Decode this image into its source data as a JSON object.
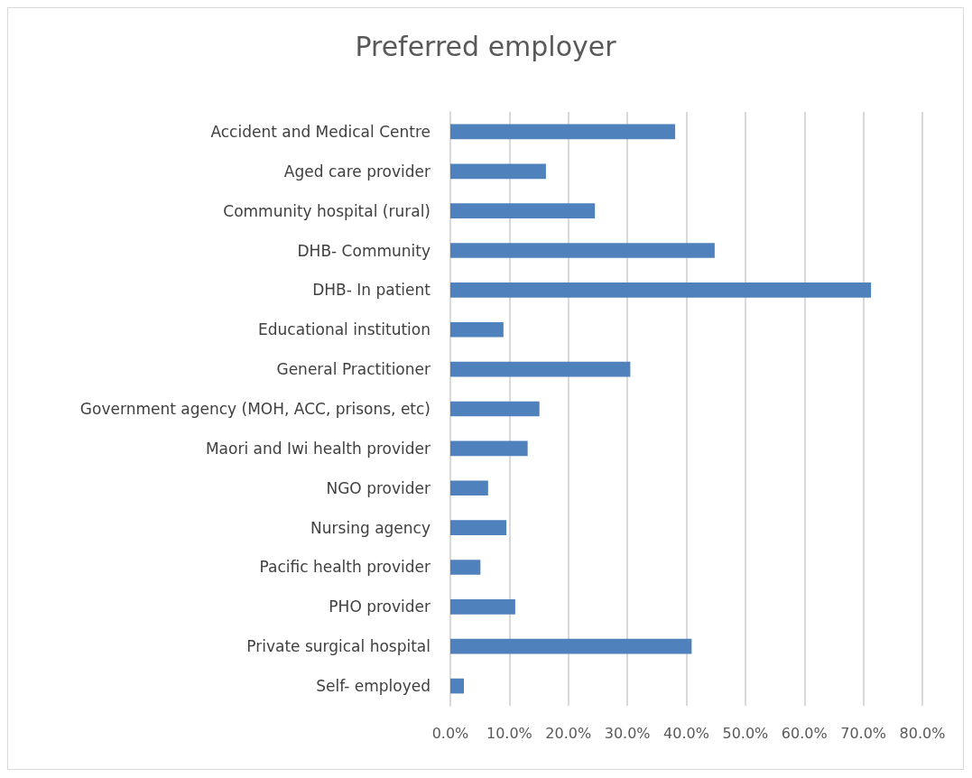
{
  "chart_data": {
    "type": "bar",
    "orientation": "horizontal",
    "title": "Preferred employer",
    "categories": [
      "Accident and Medical Centre",
      "Aged care provider",
      "Community hospital (rural)",
      "DHB- Community",
      "DHB- In patient",
      "Educational institution",
      "General Practitioner",
      "Government agency (MOH, ACC, prisons, etc)",
      "Maori and Iwi health provider",
      "NGO provider",
      "Nursing agency",
      "Pacific health provider",
      "PHO provider",
      "Private surgical hospital",
      "Self- employed"
    ],
    "values": [
      38.1,
      16.2,
      24.5,
      44.8,
      71.3,
      9.0,
      30.5,
      15.1,
      13.1,
      6.4,
      9.5,
      5.1,
      11.0,
      40.9,
      2.3
    ],
    "color": "#4f81bd",
    "xlim": [
      0,
      80
    ],
    "xticks": [
      {
        "value": 0,
        "label": "0.0%"
      },
      {
        "value": 10,
        "label": "10.0%"
      },
      {
        "value": 20,
        "label": "20.0%"
      },
      {
        "value": 30,
        "label": "30.0%"
      },
      {
        "value": 40,
        "label": "40.0%"
      },
      {
        "value": 50,
        "label": "50.0%"
      },
      {
        "value": 60,
        "label": "60.0%"
      },
      {
        "value": 70,
        "label": "70.0%"
      },
      {
        "value": 80,
        "label": "80.0%"
      }
    ],
    "grid": "x"
  }
}
